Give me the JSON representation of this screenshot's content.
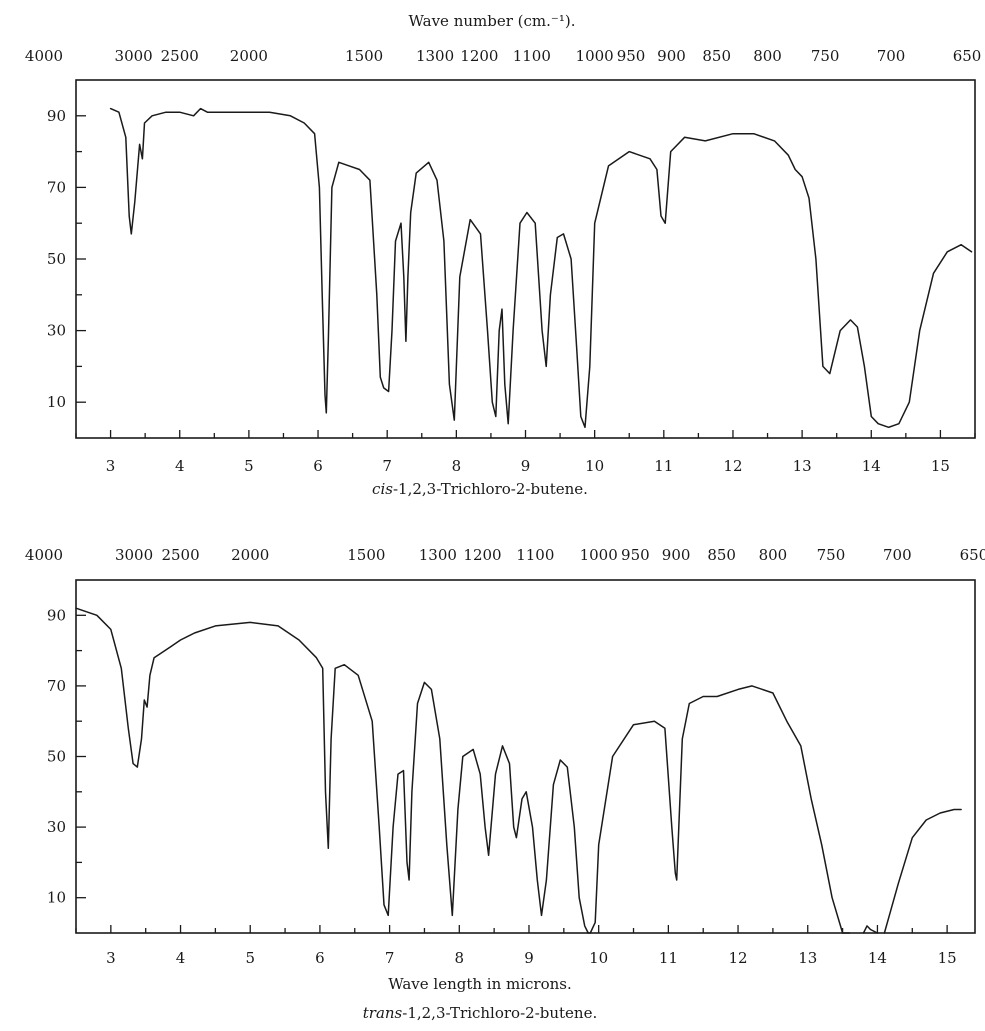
{
  "top_axis_label": "Wave number (cm.⁻¹).",
  "bottom_axis_label": "Wave length in microns.",
  "chart_data": [
    {
      "type": "line",
      "caption": "cis-1,2,3-Trichloro-2-butene.",
      "caption_italic": "cis",
      "caption_rest": "-1,2,3-Trichloro-2-butene.",
      "x_label": "",
      "xlim": [
        2.5,
        15.5
      ],
      "ylim": [
        0,
        100
      ],
      "x_ticks": [
        "3",
        "4",
        "5",
        "6",
        "7",
        "8",
        "9",
        "10",
        "11",
        "12",
        "13",
        "14",
        "15"
      ],
      "y_ticks": [
        "10",
        "30",
        "50",
        "70",
        "90"
      ],
      "wavenumber_ticks": [
        "4000",
        "3000",
        "2500",
        "2000",
        "1500",
        "1300",
        "1200",
        "1100",
        "1000",
        "950",
        "900",
        "850",
        "800",
        "750",
        "700",
        "650"
      ],
      "x": [
        3.0,
        3.12,
        3.22,
        3.27,
        3.3,
        3.35,
        3.42,
        3.46,
        3.49,
        3.6,
        3.8,
        4.0,
        4.2,
        4.3,
        4.4,
        4.5,
        4.7,
        5.0,
        5.3,
        5.6,
        5.8,
        5.95,
        6.02,
        6.06,
        6.1,
        6.12,
        6.15,
        6.2,
        6.3,
        6.45,
        6.6,
        6.75,
        6.85,
        6.9,
        6.95,
        7.02,
        7.07,
        7.12,
        7.2,
        7.24,
        7.27,
        7.3,
        7.34,
        7.42,
        7.6,
        7.72,
        7.82,
        7.9,
        7.97,
        8.05,
        8.2,
        8.35,
        8.45,
        8.52,
        8.57,
        8.62,
        8.66,
        8.7,
        8.75,
        8.82,
        8.92,
        9.02,
        9.14,
        9.24,
        9.3,
        9.36,
        9.46,
        9.55,
        9.66,
        9.74,
        9.8,
        9.86,
        9.93,
        10.0,
        10.2,
        10.5,
        10.8,
        10.9,
        10.96,
        11.02,
        11.1,
        11.3,
        11.6,
        12.0,
        12.3,
        12.6,
        12.8,
        12.9,
        13.0,
        13.1,
        13.2,
        13.3,
        13.4,
        13.55,
        13.7,
        13.8,
        13.9,
        14.0,
        14.1,
        14.25,
        14.4,
        14.55,
        14.7,
        14.9,
        15.1,
        15.3,
        15.45
      ],
      "y": [
        92,
        91,
        84,
        62,
        57,
        66,
        82,
        78,
        88,
        90,
        91,
        91,
        90,
        92,
        91,
        91,
        91,
        91,
        91,
        90,
        88,
        85,
        70,
        40,
        12,
        7,
        28,
        70,
        77,
        76,
        75,
        72,
        40,
        17,
        14,
        13,
        30,
        55,
        60,
        45,
        27,
        45,
        63,
        74,
        77,
        72,
        55,
        15,
        5,
        45,
        61,
        57,
        30,
        10,
        6,
        30,
        36,
        15,
        4,
        30,
        60,
        63,
        60,
        30,
        20,
        40,
        56,
        57,
        50,
        25,
        6,
        3,
        20,
        60,
        76,
        80,
        78,
        75,
        62,
        60,
        80,
        84,
        83,
        85,
        85,
        83,
        79,
        75,
        73,
        67,
        50,
        20,
        18,
        30,
        33,
        31,
        20,
        6,
        4,
        3,
        4,
        10,
        30,
        46,
        52,
        54,
        52
      ]
    },
    {
      "type": "line",
      "caption": "trans-1,2,3-Trichloro-2-butene.",
      "caption_italic": "trans",
      "caption_rest": "-1,2,3-Trichloro-2-butene.",
      "x_label": "Wave length in microns.",
      "xlim": [
        2.5,
        15.4
      ],
      "ylim": [
        0,
        100
      ],
      "x_ticks": [
        "3",
        "4",
        "5",
        "6",
        "7",
        "8",
        "9",
        "10",
        "11",
        "12",
        "13",
        "14",
        "15"
      ],
      "y_ticks": [
        "10",
        "30",
        "50",
        "70",
        "90"
      ],
      "wavenumber_ticks": [
        "4000",
        "3000",
        "2500",
        "2000",
        "1500",
        "1300",
        "1200",
        "1100",
        "1000",
        "950",
        "900",
        "850",
        "800",
        "750",
        "700",
        "650"
      ],
      "x": [
        2.5,
        2.8,
        3.0,
        3.15,
        3.25,
        3.32,
        3.38,
        3.44,
        3.48,
        3.52,
        3.56,
        3.62,
        3.7,
        3.85,
        4.0,
        4.2,
        4.5,
        5.0,
        5.4,
        5.7,
        5.95,
        6.04,
        6.08,
        6.12,
        6.16,
        6.22,
        6.35,
        6.55,
        6.75,
        6.85,
        6.92,
        6.98,
        7.05,
        7.12,
        7.2,
        7.25,
        7.28,
        7.32,
        7.4,
        7.5,
        7.6,
        7.72,
        7.82,
        7.9,
        7.98,
        8.05,
        8.2,
        8.3,
        8.37,
        8.42,
        8.52,
        8.62,
        8.72,
        8.78,
        8.82,
        8.9,
        8.96,
        9.05,
        9.12,
        9.18,
        9.25,
        9.35,
        9.45,
        9.55,
        9.65,
        9.72,
        9.8,
        9.85,
        9.88,
        9.95,
        10.0,
        10.2,
        10.5,
        10.8,
        10.95,
        11.05,
        11.1,
        11.12,
        11.15,
        11.2,
        11.3,
        11.5,
        11.7,
        12.0,
        12.2,
        12.5,
        12.7,
        12.9,
        13.05,
        13.2,
        13.35,
        13.5,
        13.6
      ],
      "y": [
        92,
        90,
        86,
        75,
        58,
        48,
        47,
        55,
        66,
        64,
        73,
        78,
        79,
        81,
        83,
        85,
        87,
        88,
        87,
        83,
        78,
        75,
        40,
        24,
        55,
        75,
        76,
        73,
        60,
        30,
        8,
        5,
        30,
        45,
        46,
        20,
        15,
        40,
        65,
        71,
        69,
        55,
        25,
        5,
        35,
        50,
        52,
        45,
        30,
        22,
        45,
        53,
        48,
        30,
        27,
        38,
        40,
        30,
        15,
        5,
        15,
        42,
        49,
        47,
        30,
        10,
        2,
        0,
        0,
        3,
        25,
        50,
        59,
        60,
        58,
        30,
        17,
        15,
        30,
        55,
        65,
        67,
        67,
        69,
        70,
        68,
        60,
        53,
        38,
        25,
        10,
        0,
        0
      ],
      "x2": [
        13.8,
        13.85,
        13.9,
        14.0
      ],
      "y2": [
        0,
        2,
        1,
        0
      ],
      "x3": [
        14.1,
        14.3,
        14.5,
        14.7,
        14.9,
        15.1,
        15.2
      ],
      "y3": [
        0,
        14,
        27,
        32,
        34,
        35,
        35
      ]
    }
  ]
}
